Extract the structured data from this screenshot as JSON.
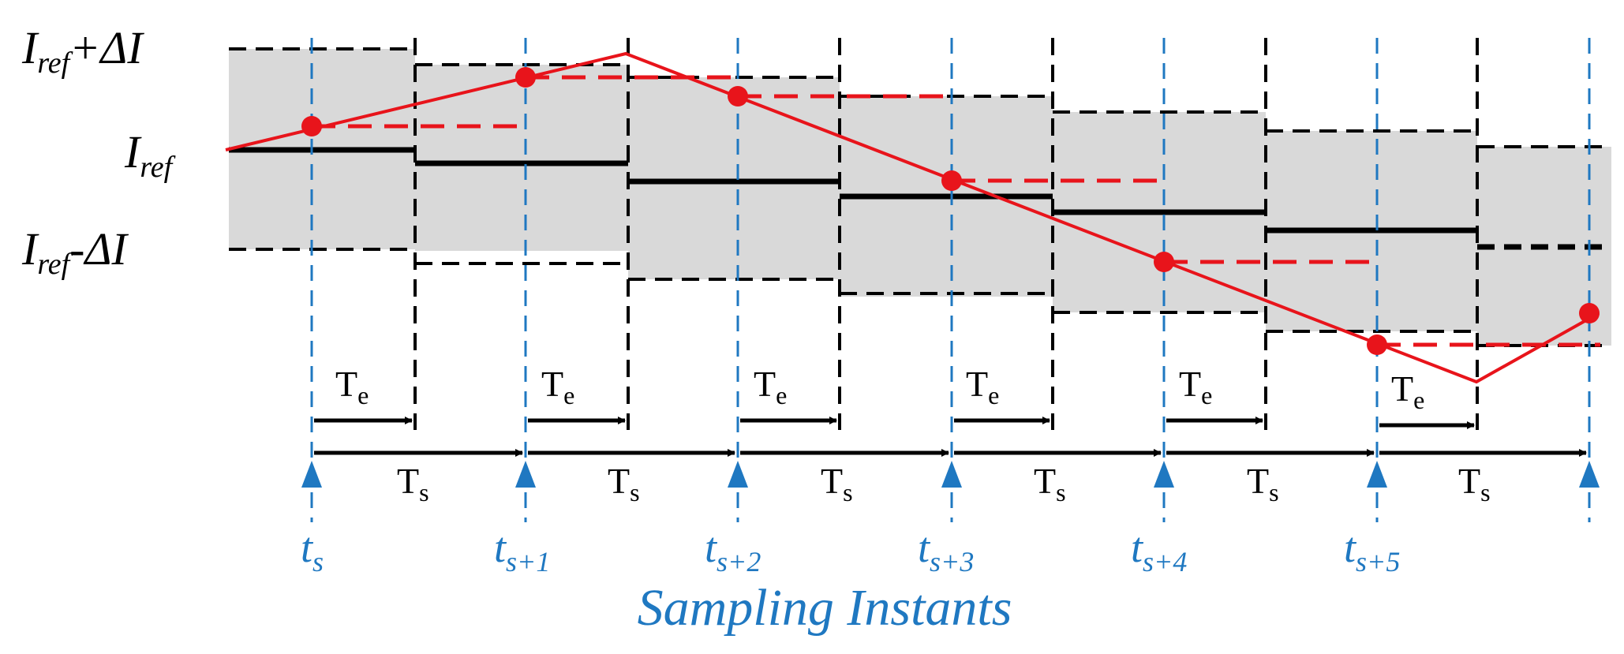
{
  "y_axis_labels": {
    "upper": {
      "main": "I",
      "sub": "ref",
      "suffix": "+ΔI"
    },
    "center": {
      "main": "I",
      "sub": "ref",
      "suffix": ""
    },
    "lower": {
      "main": "I",
      "sub": "ref",
      "suffix": "-ΔI"
    }
  },
  "interval_labels": {
    "te": {
      "main": "T",
      "sub": "e"
    },
    "ts": {
      "main": "T",
      "sub": "s"
    }
  },
  "sampling_instants": [
    {
      "main": "t",
      "sub": "s"
    },
    {
      "main": "t",
      "sub": "s+1"
    },
    {
      "main": "t",
      "sub": "s+2"
    },
    {
      "main": "t",
      "sub": "s+3"
    },
    {
      "main": "t",
      "sub": "s+4"
    },
    {
      "main": "t",
      "sub": "s+5"
    }
  ],
  "caption": "Sampling Instants",
  "colors": {
    "current_trace": "#e8141b",
    "sampling_marker": "#1f78c1",
    "reference": "#000000",
    "band_fill": "#d9d9d9"
  }
}
